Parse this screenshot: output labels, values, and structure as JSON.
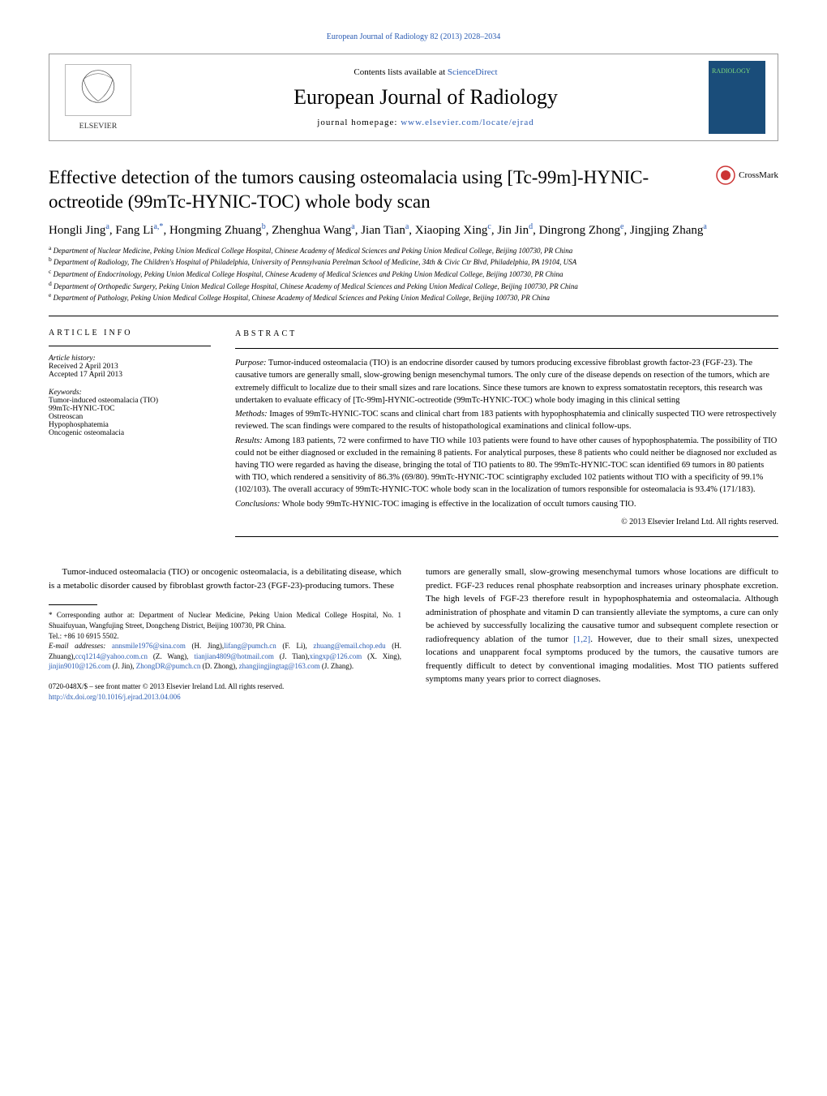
{
  "top_link": "European Journal of Radiology 82 (2013) 2028–2034",
  "header": {
    "contents_prefix": "Contents lists available at ",
    "contents_link": "ScienceDirect",
    "journal_name": "European Journal of Radiology",
    "homepage_prefix": "journal homepage: ",
    "homepage_link": "www.elsevier.com/locate/ejrad",
    "cover_label": "RADIOLOGY"
  },
  "crossmark": "CrossMark",
  "title": "Effective detection of the tumors causing osteomalacia using [Tc-99m]-HYNIC-octreotide (99mTc-HYNIC-TOC) whole body scan",
  "authors_html": "Hongli Jing<sup>a</sup>, Fang Li<sup>a,*</sup>, Hongming Zhuang<sup>b</sup>, Zhenghua Wang<sup>a</sup>, Jian Tian<sup>a</sup>, Xiaoping Xing<sup>c</sup>, Jin Jin<sup>d</sup>, Dingrong Zhong<sup>e</sup>, Jingjing Zhang<sup>a</sup>",
  "affiliations": [
    {
      "sup": "a",
      "text": " Department of Nuclear Medicine, Peking Union Medical College Hospital, Chinese Academy of Medical Sciences and Peking Union Medical College, Beijing 100730, PR China"
    },
    {
      "sup": "b",
      "text": " Department of Radiology, The Children's Hospital of Philadelphia, University of Pennsylvania Perelman School of Medicine, 34th & Civic Ctr Blvd, Philadelphia, PA 19104, USA"
    },
    {
      "sup": "c",
      "text": " Department of Endocrinology, Peking Union Medical College Hospital, Chinese Academy of Medical Sciences and Peking Union Medical College, Beijing 100730, PR China"
    },
    {
      "sup": "d",
      "text": " Department of Orthopedic Surgery, Peking Union Medical College Hospital, Chinese Academy of Medical Sciences and Peking Union Medical College, Beijing 100730, PR China"
    },
    {
      "sup": "e",
      "text": " Department of Pathology, Peking Union Medical College Hospital, Chinese Academy of Medical Sciences and Peking Union Medical College, Beijing 100730, PR China"
    }
  ],
  "article_info": {
    "heading": "article info",
    "history_label": "Article history:",
    "received": "Received 2 April 2013",
    "accepted": "Accepted 17 April 2013",
    "keywords_label": "Keywords:",
    "keywords": [
      "Tumor-induced osteomalacia (TIO)",
      "99mTc-HYNIC-TOC",
      "Ostreoscan",
      "Hypophosphatemia",
      "Oncogenic osteomalacia"
    ]
  },
  "abstract": {
    "heading": "abstract",
    "purpose_label": "Purpose:",
    "purpose": " Tumor-induced osteomalacia (TIO) is an endocrine disorder caused by tumors producing excessive fibroblast growth factor-23 (FGF-23). The causative tumors are generally small, slow-growing benign mesenchymal tumors. The only cure of the disease depends on resection of the tumors, which are extremely difficult to localize due to their small sizes and rare locations. Since these tumors are known to express somatostatin receptors, this research was undertaken to evaluate efficacy of [Tc-99m]-HYNIC-octreotide (99mTc-HYNIC-TOC) whole body imaging in this clinical setting",
    "methods_label": "Methods:",
    "methods": " Images of 99mTc-HYNIC-TOC scans and clinical chart from 183 patients with hypophosphatemia and clinically suspected TIO were retrospectively reviewed. The scan findings were compared to the results of histopathological examinations and clinical follow-ups.",
    "results_label": "Results:",
    "results": " Among 183 patients, 72 were confirmed to have TIO while 103 patients were found to have other causes of hypophosphatemia. The possibility of TIO could not be either diagnosed or excluded in the remaining 8 patients. For analytical purposes, these 8 patients who could neither be diagnosed nor excluded as having TIO were regarded as having the disease, bringing the total of TIO patients to 80. The 99mTc-HYNIC-TOC scan identified 69 tumors in 80 patients with TIO, which rendered a sensitivity of 86.3% (69/80). 99mTc-HYNIC-TOC scintigraphy excluded 102 patients without TIO with a specificity of 99.1% (102/103). The overall accuracy of 99mTc-HYNIC-TOC whole body scan in the localization of tumors responsible for osteomalacia is 93.4% (171/183).",
    "conclusions_label": "Conclusions:",
    "conclusions": " Whole body 99mTc-HYNIC-TOC imaging is effective in the localization of occult tumors causing TIO.",
    "copyright": "© 2013 Elsevier Ireland Ltd. All rights reserved."
  },
  "body": {
    "left_para": "Tumor-induced osteomalacia (TIO) or oncogenic osteomalacia, is a debilitating disease, which is a metabolic disorder caused by fibroblast growth factor-23 (FGF-23)-producing tumors. These",
    "right_para_1": "tumors are generally small, slow-growing mesenchymal tumors whose locations are difficult to predict. FGF-23 reduces renal phosphate reabsorption and increases urinary phosphate excretion. The high levels of FGF-23 therefore result in hypophosphatemia and osteomalacia. Although administration of phosphate and vitamin D can transiently alleviate the symptoms, a cure can only be achieved by successfully localizing the causative tumor and subsequent complete resection or radiofrequency ablation of the tumor ",
    "right_ref": "[1,2]",
    "right_para_2": ". However, due to their small sizes, unexpected locations and unapparent focal symptoms produced by the tumors, the causative tumors are frequently difficult to detect by conventional imaging modalities. Most TIO patients suffered symptoms many years prior to correct diagnoses."
  },
  "footnotes": {
    "corresponding": "* Corresponding author at: Department of Nuclear Medicine, Peking Union Medical College Hospital, No. 1 Shuaifuyuan, Wangfujing Street, Dongcheng District, Beijing 100730, PR China.",
    "tel": "Tel.: +86 10 6915 5502.",
    "email_label": "E-mail addresses: ",
    "emails": [
      {
        "addr": "annsmile1976@sina.com",
        "name": " (H. Jing),"
      },
      {
        "addr": "lifang@pumch.cn",
        "name": " (F. Li), "
      },
      {
        "addr": "zhuang@email.chop.edu",
        "name": " (H. Zhuang),"
      },
      {
        "addr": "ccq1214@yahoo.com.cn",
        "name": " (Z. Wang), "
      },
      {
        "addr": "tianjian4809@hotmail.com",
        "name": " (J. Tian),"
      },
      {
        "addr": "xingxp@126.com",
        "name": " (X. Xing), "
      },
      {
        "addr": "jinjin9010@126.com",
        "name": " (J. Jin), "
      },
      {
        "addr": "ZhongDR@pumch.cn",
        "name": " (D. Zhong), "
      },
      {
        "addr": "zhangjingjingtag@163.com",
        "name": " (J. Zhang)."
      }
    ]
  },
  "doi": {
    "line1": "0720-048X/$ – see front matter © 2013 Elsevier Ireland Ltd. All rights reserved.",
    "link": "http://dx.doi.org/10.1016/j.ejrad.2013.04.006"
  },
  "colors": {
    "link": "#2b5cb3",
    "cover_bg": "#1a4d7a",
    "cover_text": "#7dd87d"
  }
}
